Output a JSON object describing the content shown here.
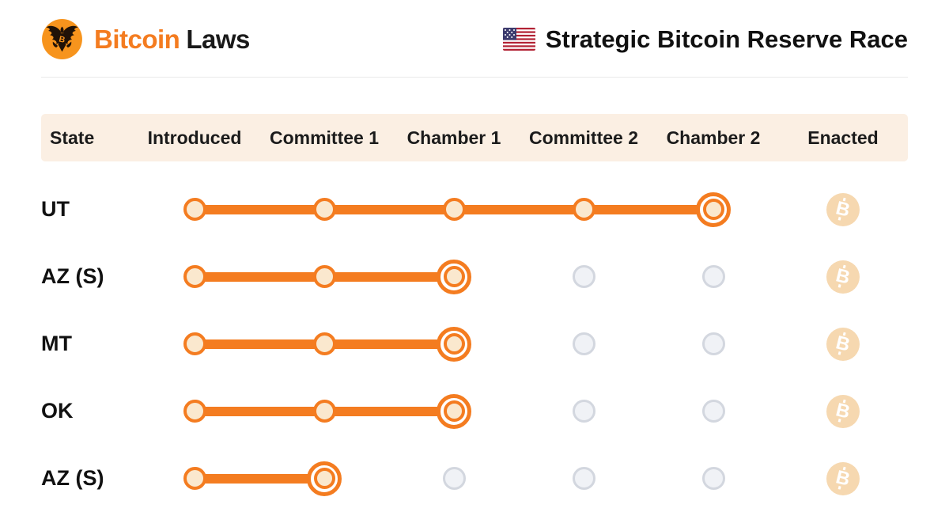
{
  "brand": {
    "name_primary": "Bitcoin",
    "name_secondary": "Laws",
    "logo_icon": "bitcoin-eagle-seal"
  },
  "header": {
    "flag_icon": "us-flag",
    "title": "Strategic Bitcoin Reserve Race"
  },
  "table": {
    "columns": [
      "State",
      "Introduced",
      "Committee 1",
      "Chamber 1",
      "Committee 2",
      "Chamber 2",
      "Enacted"
    ],
    "stage_keys": [
      "introduced",
      "committee-1",
      "chamber-1",
      "committee-2",
      "chamber-2"
    ],
    "rows": [
      {
        "state": "UT",
        "stages": [
          "done",
          "done",
          "done",
          "done",
          "current"
        ],
        "enacted": "not-enacted"
      },
      {
        "state": "AZ (S)",
        "stages": [
          "done",
          "done",
          "current",
          "pending",
          "pending"
        ],
        "enacted": "not-enacted"
      },
      {
        "state": "MT",
        "stages": [
          "done",
          "done",
          "current",
          "pending",
          "pending"
        ],
        "enacted": "not-enacted"
      },
      {
        "state": "OK",
        "stages": [
          "done",
          "done",
          "current",
          "pending",
          "pending"
        ],
        "enacted": "not-enacted"
      },
      {
        "state": "AZ (S)",
        "stages": [
          "done",
          "current",
          "pending",
          "pending",
          "pending"
        ],
        "enacted": "not-enacted"
      }
    ]
  },
  "colors": {
    "accent": "#F47C20",
    "dot_fill": "#FAE8CE",
    "header_bg": "#FBEFE3",
    "pending_fill": "#F0F2F6",
    "pending_border": "#D3D7DF",
    "coin_bg": "#F6D8B0",
    "logo_orange": "#F7941D"
  }
}
